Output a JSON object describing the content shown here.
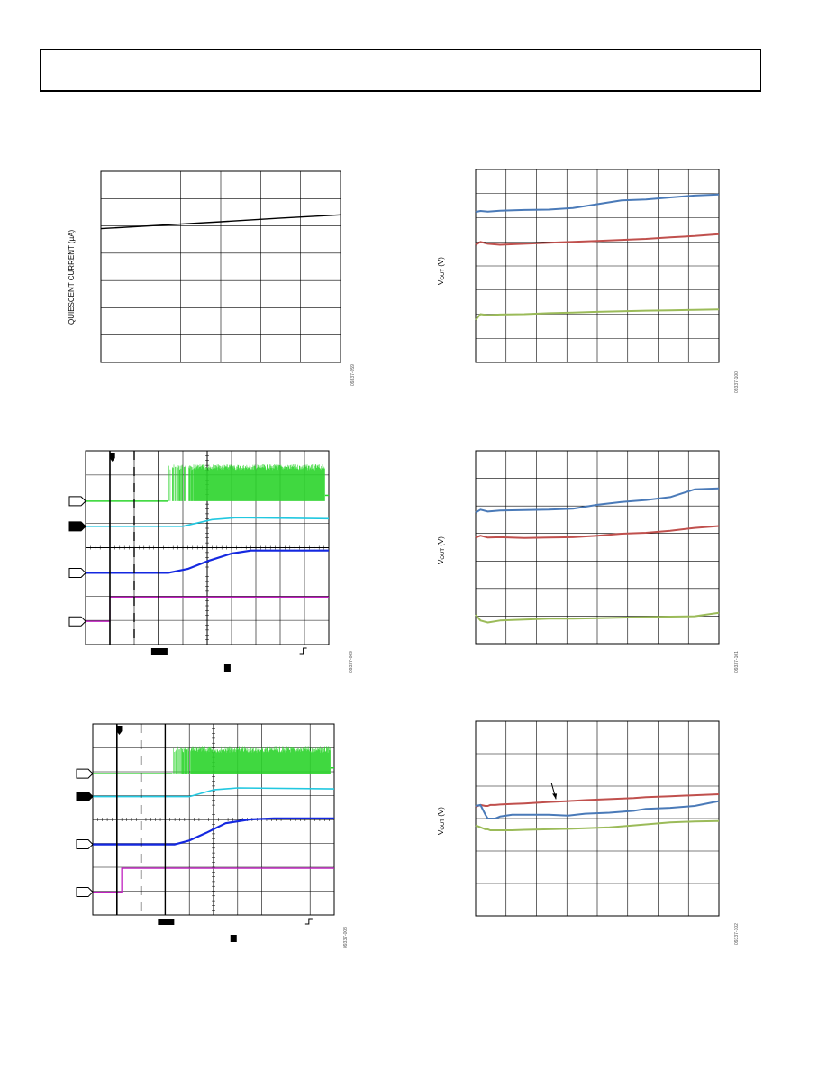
{
  "page": {
    "header": ""
  },
  "charts": {
    "quiescent": {
      "ylabel": "QUIESCENT CURRENT (µA)",
      "fig": "09337-059"
    },
    "vout1": {
      "ylabel_main": "V",
      "ylabel_sub": "OUT",
      "ylabel_unit": " (V)",
      "fig": "09337-100"
    },
    "scope1": {
      "fig": "09337-009"
    },
    "vout2": {
      "ylabel_main": "V",
      "ylabel_sub": "OUT",
      "ylabel_unit": " (V)",
      "fig": "09337-101"
    },
    "scope2": {
      "fig": "09337-008"
    },
    "vout3": {
      "ylabel_main": "V",
      "ylabel_sub": "OUT",
      "ylabel_unit": " (V)",
      "fig": "09337-102"
    }
  },
  "chart_data": [
    {
      "id": "quiescent",
      "type": "line",
      "grid": true,
      "ylabel": "QUIESCENT CURRENT (µA)",
      "x": [
        0,
        0.25,
        0.5,
        0.75,
        1.0
      ],
      "series": [
        {
          "values": [
            0.7,
            0.718,
            0.736,
            0.755,
            0.772
          ],
          "color": "#000000"
        }
      ],
      "xlim": [
        0,
        1
      ],
      "ylim": [
        0,
        1
      ]
    },
    {
      "id": "vout1",
      "type": "line",
      "grid": true,
      "ylabel": "VOUT (V)",
      "x": [
        0,
        0.02,
        0.05,
        0.1,
        0.2,
        0.3,
        0.4,
        0.5,
        0.6,
        0.7,
        0.8,
        0.9,
        1.0
      ],
      "series": [
        {
          "color": "#4a7ab8",
          "values": [
            0.78,
            0.785,
            0.782,
            0.786,
            0.79,
            0.792,
            0.8,
            0.82,
            0.84,
            0.845,
            0.855,
            0.865,
            0.87
          ]
        },
        {
          "color": "#c0504d",
          "values": [
            0.61,
            0.625,
            0.615,
            0.61,
            0.615,
            0.62,
            0.625,
            0.63,
            0.635,
            0.64,
            0.648,
            0.655,
            0.665
          ]
        },
        {
          "color": "#9bbb59",
          "values": [
            0.22,
            0.25,
            0.245,
            0.248,
            0.25,
            0.255,
            0.258,
            0.262,
            0.265,
            0.268,
            0.27,
            0.272,
            0.275
          ]
        }
      ],
      "xlim": [
        0,
        1
      ],
      "ylim": [
        0,
        1
      ]
    },
    {
      "id": "scope1",
      "type": "line",
      "grid": true,
      "series": [
        {
          "name": "ch1",
          "color": "#2bd42b",
          "level": 0.74,
          "burst_start": 0.34,
          "burst_full": 0.5,
          "burst_top": 0.93
        },
        {
          "name": "ch2",
          "color": "#22c8e0",
          "values_x": [
            0,
            0.4,
            0.52,
            0.62,
            1.0
          ],
          "values_y": [
            0.61,
            0.61,
            0.645,
            0.655,
            0.65
          ]
        },
        {
          "name": "ch3",
          "color": "#1428e0",
          "values_x": [
            0,
            0.34,
            0.42,
            0.5,
            0.6,
            0.68,
            1.0
          ],
          "values_y": [
            0.37,
            0.37,
            0.39,
            0.43,
            0.47,
            0.485,
            0.485
          ]
        },
        {
          "name": "ch4",
          "color": "#c020c0",
          "step_x": 0.1,
          "low": 0.12,
          "high": 0.245
        }
      ]
    },
    {
      "id": "vout2",
      "type": "line",
      "grid": true,
      "ylabel": "VOUT (V)",
      "x": [
        0,
        0.02,
        0.05,
        0.1,
        0.2,
        0.3,
        0.4,
        0.5,
        0.6,
        0.7,
        0.8,
        0.9,
        1.0
      ],
      "series": [
        {
          "color": "#4a7ab8",
          "values": [
            0.68,
            0.695,
            0.685,
            0.69,
            0.693,
            0.695,
            0.7,
            0.72,
            0.735,
            0.745,
            0.76,
            0.8,
            0.805
          ]
        },
        {
          "color": "#c0504d",
          "values": [
            0.55,
            0.56,
            0.55,
            0.552,
            0.548,
            0.55,
            0.552,
            0.56,
            0.57,
            0.575,
            0.585,
            0.6,
            0.61
          ]
        },
        {
          "color": "#9bbb59",
          "values": [
            0.15,
            0.12,
            0.11,
            0.12,
            0.125,
            0.13,
            0.13,
            0.132,
            0.135,
            0.138,
            0.14,
            0.142,
            0.16
          ]
        }
      ],
      "xlim": [
        0,
        1
      ],
      "ylim": [
        0,
        1
      ]
    },
    {
      "id": "scope2",
      "type": "line",
      "grid": true,
      "series": [
        {
          "name": "ch1",
          "color": "#2bd42b",
          "level": 0.74,
          "burst_start": 0.33,
          "burst_full": 0.44,
          "burst_top": 0.88
        },
        {
          "name": "ch2",
          "color": "#22c8e0",
          "values_x": [
            0,
            0.4,
            0.5,
            0.6,
            1.0
          ],
          "values_y": [
            0.62,
            0.62,
            0.655,
            0.665,
            0.66
          ]
        },
        {
          "name": "ch3",
          "color": "#1428e0",
          "values_x": [
            0,
            0.34,
            0.4,
            0.47,
            0.55,
            0.65,
            0.75,
            1.0
          ],
          "values_y": [
            0.37,
            0.37,
            0.39,
            0.43,
            0.48,
            0.5,
            0.505,
            0.505
          ]
        },
        {
          "name": "ch4",
          "color": "#c020c0",
          "step_x": 0.12,
          "low": 0.12,
          "high": 0.245
        }
      ]
    },
    {
      "id": "vout3",
      "type": "line",
      "grid": true,
      "ylabel": "VOUT (V)",
      "x": [
        0,
        0.02,
        0.04,
        0.05,
        0.06,
        0.08,
        0.1,
        0.15,
        0.2,
        0.3,
        0.38,
        0.45,
        0.55,
        0.65,
        0.7,
        0.8,
        0.9,
        1.0
      ],
      "series": [
        {
          "color": "#c0504d",
          "values": [
            0.56,
            0.57,
            0.565,
            0.565,
            0.57,
            0.57,
            0.572,
            0.575,
            0.578,
            0.585,
            0.59,
            0.595,
            0.6,
            0.605,
            0.61,
            0.615,
            0.62,
            0.625
          ]
        },
        {
          "color": "#4a7ab8",
          "values": [
            0.565,
            0.57,
            0.52,
            0.5,
            0.5,
            0.5,
            0.51,
            0.52,
            0.52,
            0.52,
            0.515,
            0.525,
            0.53,
            0.54,
            0.55,
            0.555,
            0.565,
            0.59
          ]
        },
        {
          "color": "#9bbb59",
          "values": [
            0.465,
            0.455,
            0.445,
            0.445,
            0.44,
            0.44,
            0.44,
            0.44,
            0.442,
            0.445,
            0.447,
            0.45,
            0.455,
            0.465,
            0.47,
            0.48,
            0.485,
            0.487
          ]
        }
      ],
      "annotation_arrow": {
        "x": 0.33,
        "y": 0.6
      },
      "xlim": [
        0,
        1
      ],
      "ylim": [
        0,
        1
      ]
    }
  ]
}
